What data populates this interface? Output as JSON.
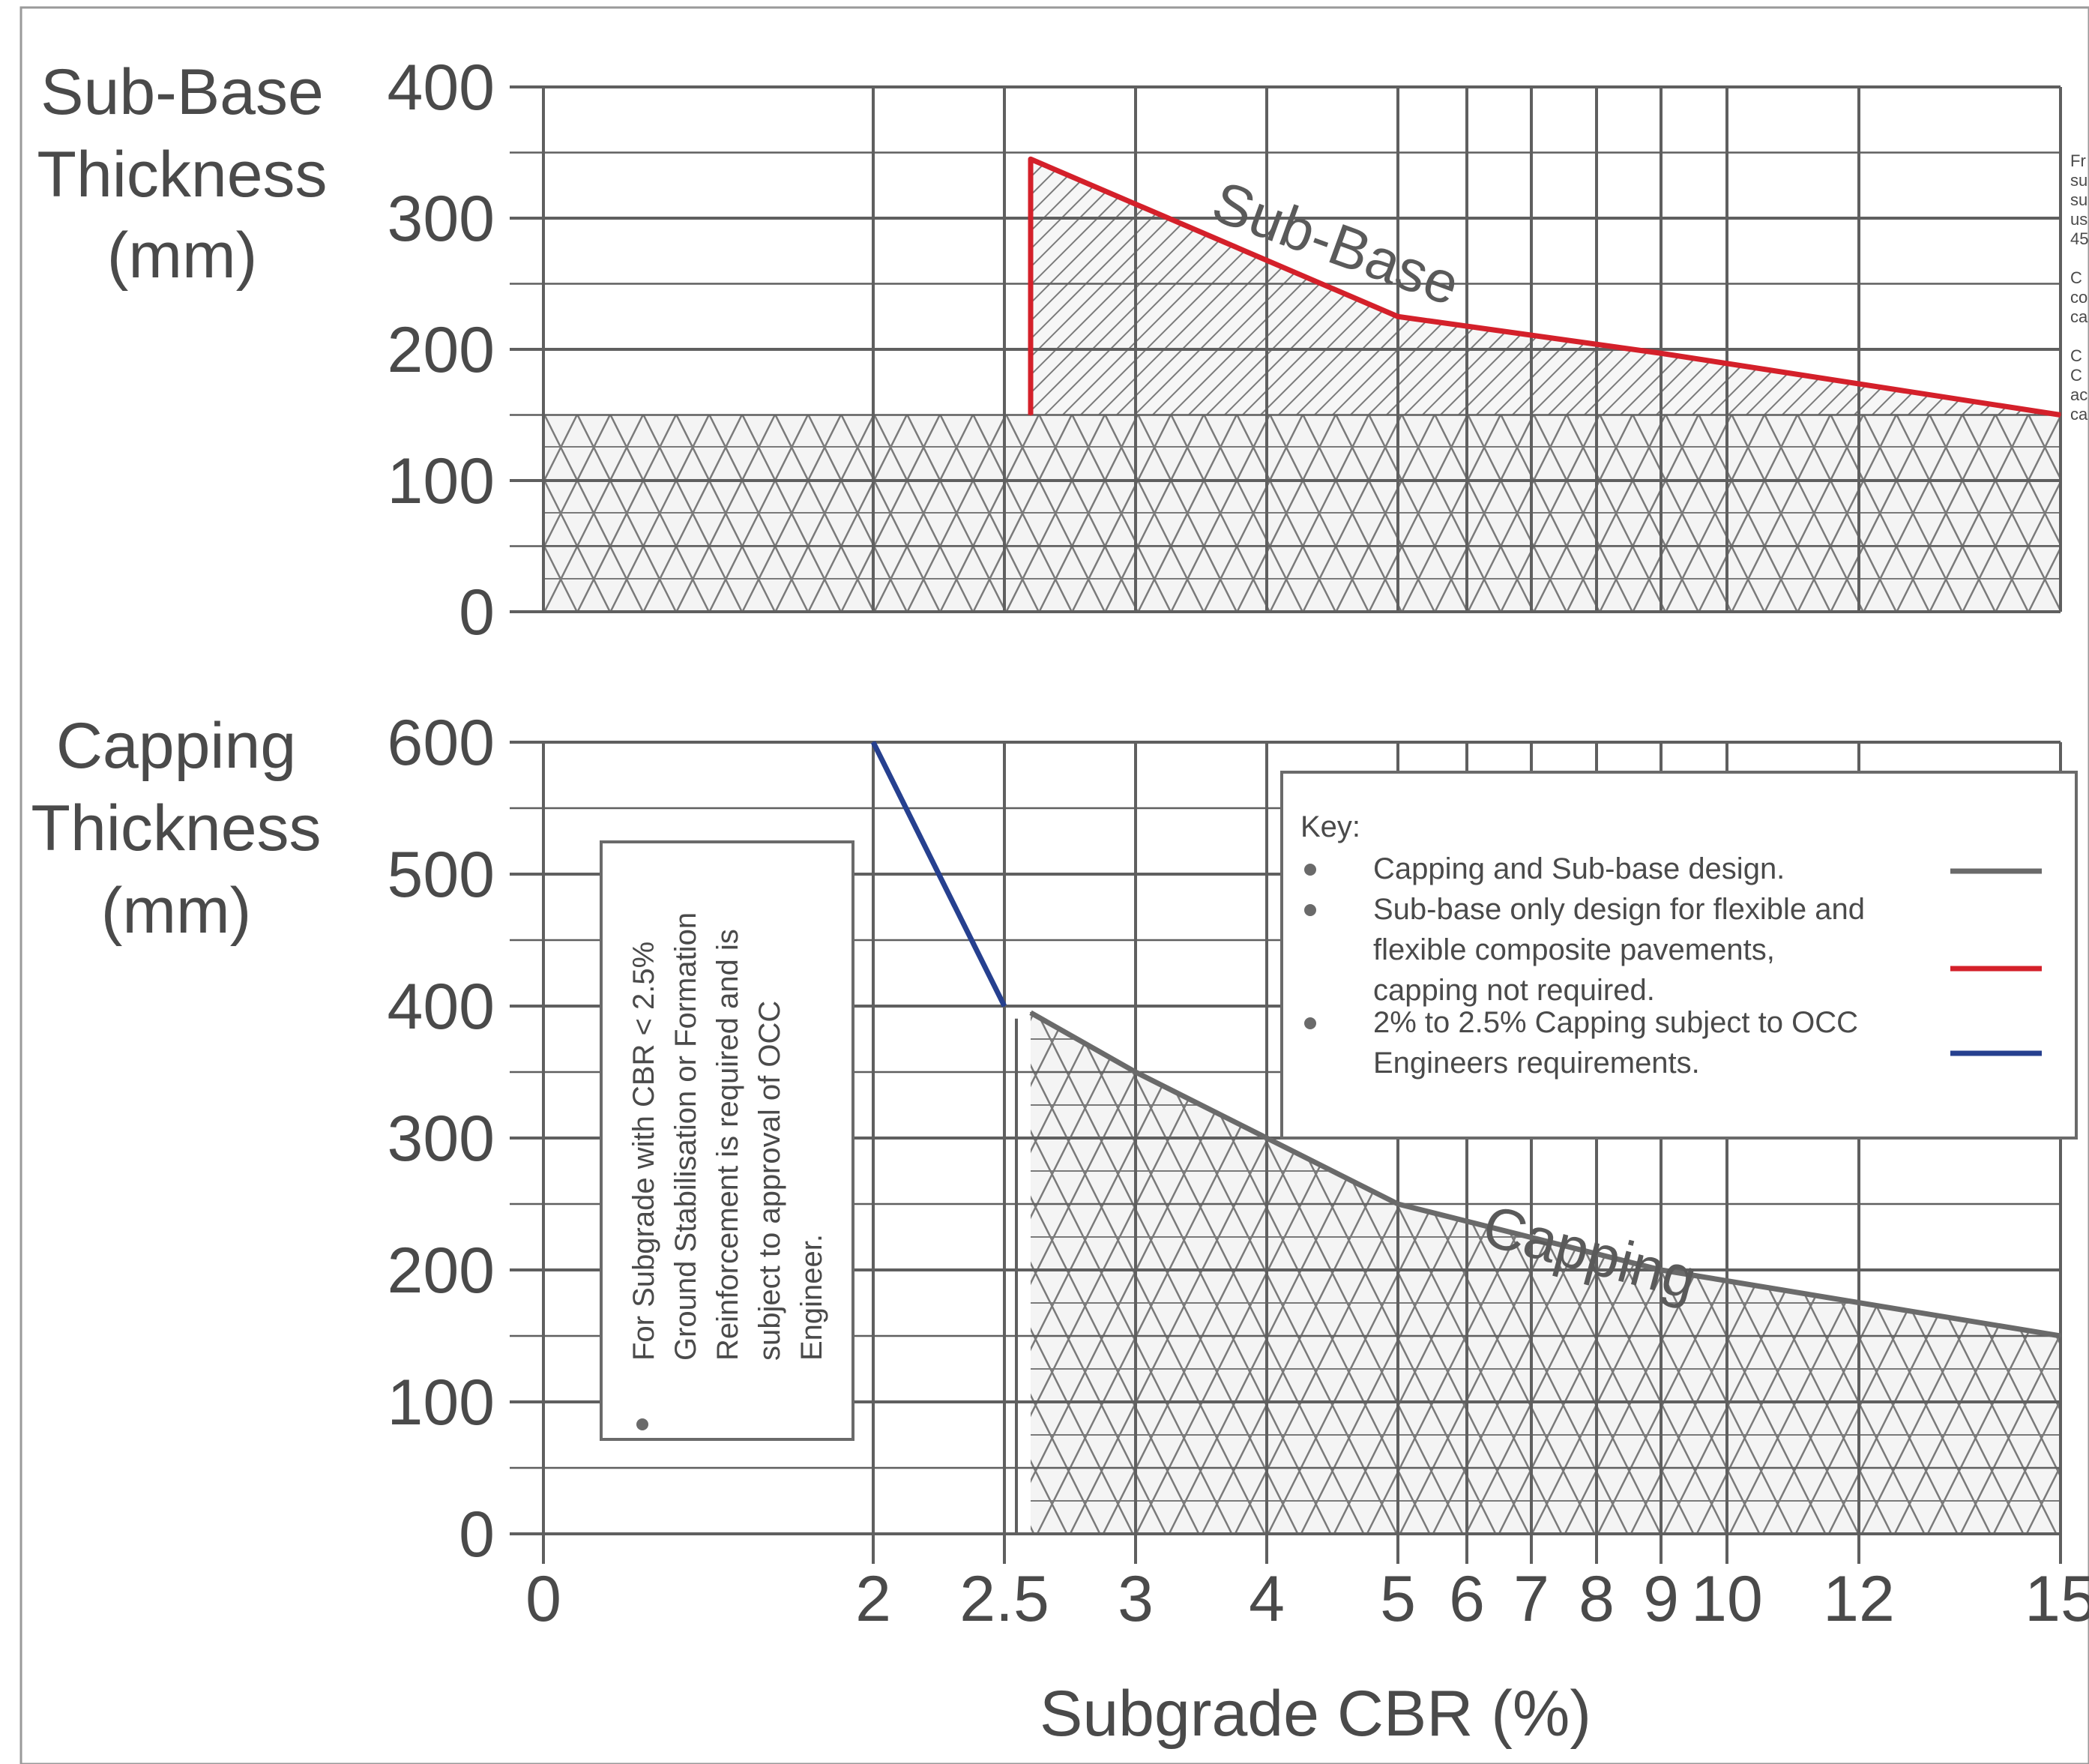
{
  "colors": {
    "grid": "#5f5f5f",
    "hatch": "#7a7a7a",
    "text": "#4a4a4a",
    "subbase_line": "#d4202a",
    "capping_blue": "#26408f",
    "capping_grey": "#6a6a6a"
  },
  "side_notes": {
    "lines": [
      "Fr",
      "su",
      "su",
      "us",
      "45",
      "",
      "C",
      "co",
      "ca",
      "",
      "C",
      "C",
      "ac",
      "ca"
    ]
  },
  "chart_data": [
    {
      "type": "area",
      "id": "subbase",
      "ylabel_lines": [
        "Sub-Base",
        "Thickness",
        "(mm)"
      ],
      "ylim": [
        0,
        400
      ],
      "y_ticks": [
        0,
        100,
        200,
        300,
        400
      ],
      "x_ticks": [
        0,
        2,
        2.5,
        3,
        4,
        5,
        6,
        7,
        8,
        9,
        10,
        12,
        15
      ],
      "x_tick_labels": [
        "",
        "",
        "",
        "",
        "",
        "",
        "",
        "",
        "",
        "",
        "",
        "",
        ""
      ],
      "xlim": [
        0,
        15
      ],
      "grid": true,
      "series": [
        {
          "name": "Sub-Base",
          "color_key": "subbase_line",
          "x": [
            2.6,
            2.6,
            5,
            9,
            15
          ],
          "y": [
            150,
            345,
            225,
            197,
            150
          ]
        }
      ],
      "baseline_fill": {
        "from": 0,
        "to": 150,
        "pattern": "crosshatch"
      },
      "annotations": [
        {
          "text": "Sub-Base",
          "x": 4.3,
          "y": 300,
          "angle": 20
        }
      ]
    },
    {
      "type": "area",
      "id": "capping",
      "ylabel_lines": [
        "Capping",
        "Thickness",
        "(mm)"
      ],
      "ylim": [
        0,
        600
      ],
      "y_ticks": [
        0,
        100,
        200,
        300,
        400,
        500,
        600
      ],
      "x_ticks": [
        0,
        2,
        2.5,
        3,
        4,
        5,
        6,
        7,
        8,
        9,
        10,
        12,
        15
      ],
      "x_tick_labels": [
        "0",
        "2",
        "2.5",
        "3",
        "4",
        "5",
        "6",
        "7",
        "8",
        "9",
        "10",
        "12",
        "15"
      ],
      "xlim": [
        0,
        15
      ],
      "xlabel": "Subgrade CBR (%)",
      "grid": true,
      "series": [
        {
          "name": "2% to 2.5% Capping",
          "color_key": "capping_blue",
          "x": [
            2,
            2.5
          ],
          "y": [
            600,
            400
          ]
        },
        {
          "name": "Capping",
          "color_key": "capping_grey",
          "x": [
            2.6,
            3,
            4,
            5,
            9,
            15
          ],
          "y": [
            395,
            350,
            300,
            250,
            200,
            150
          ]
        }
      ],
      "annotations": [
        {
          "text": "Capping",
          "x": 7.7,
          "y": 220,
          "angle": 15
        }
      ],
      "note_box": {
        "lines": [
          "For Subgrade with CBR < 2.5%",
          "Ground Stabilisation or Formation",
          "Reinforcement is required and is",
          "subject to approval of OCC",
          "Engineer."
        ]
      },
      "legend": {
        "title": "Key:",
        "position": "top-right",
        "items": [
          {
            "lines": [
              "Capping and Sub-base design."
            ],
            "color_key": "capping_grey"
          },
          {
            "lines": [
              "Sub-base only design for flexible and",
              "flexible composite pavements,",
              "capping not required."
            ],
            "color_key": "subbase_line"
          },
          {
            "lines": [
              "2% to 2.5% Capping subject to OCC",
              "Engineers requirements."
            ],
            "color_key": "capping_blue"
          }
        ]
      }
    }
  ]
}
